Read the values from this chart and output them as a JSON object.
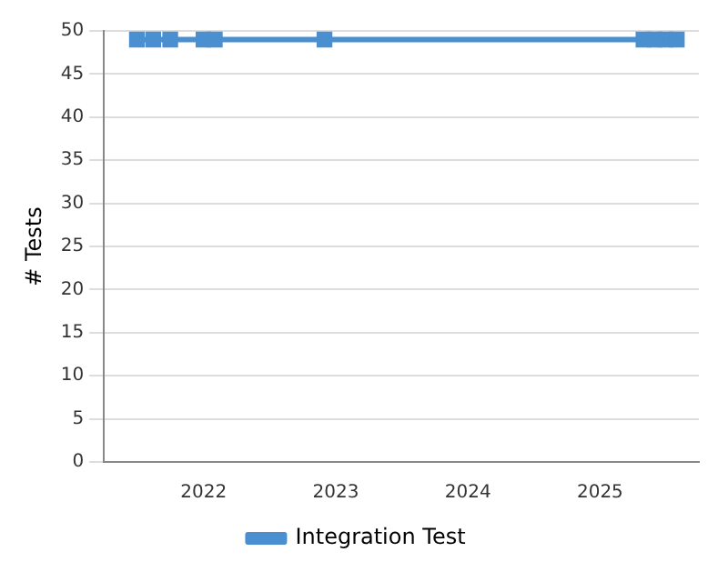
{
  "chart_data": {
    "type": "line",
    "ylabel": "# Tests",
    "x": [
      "2021-07-01",
      "2021-08-15",
      "2021-10-01",
      "2022-01-01",
      "2022-02-01",
      "2022-12-01",
      "2025-05-01",
      "2025-06-01",
      "2025-07-01",
      "2025-08-01"
    ],
    "series": [
      {
        "name": "Integration Test",
        "color": "#4a8fcf",
        "values": [
          49,
          49,
          49,
          49,
          49,
          49,
          49,
          49,
          49,
          49
        ]
      }
    ],
    "xlim": [
      "2021-04",
      "2025-10"
    ],
    "xticks": [
      "2022",
      "2023",
      "2024",
      "2025"
    ],
    "ylim": [
      0,
      50
    ],
    "yticks": [
      0,
      5,
      10,
      15,
      20,
      25,
      30,
      35,
      40,
      45,
      50
    ],
    "grid": "y",
    "legend": "bottom",
    "marker": "square",
    "line_style": "solid"
  }
}
